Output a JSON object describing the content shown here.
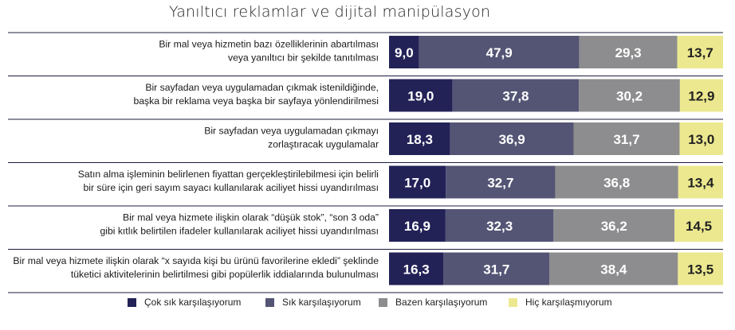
{
  "chart_data": {
    "type": "bar",
    "orientation": "horizontal",
    "stacked": true,
    "title": "Yanıltıcı reklamlar ve dijital manipülasyon",
    "categories": [
      [
        "Bir mal veya hizmetin bazı özelliklerinin abartılması",
        "veya yanıltıcı bir şekilde tanıtılması"
      ],
      [
        "Bir sayfadan veya uygulamadan çıkmak istenildiğinde,",
        "başka bir reklama veya başka bir sayfaya yönlendirilmesi"
      ],
      [
        "Bir sayfadan veya uygulamadan çıkmayı",
        "zorlaştıracak uygulamalar"
      ],
      [
        "Satın alma işleminin belirlenen fiyattan gerçekleştirilebilmesi için belirli",
        "bir süre için geri sayım sayacı kullanılarak aciliyet hissi uyandırılması"
      ],
      [
        "Bir mal veya hizmete ilişkin olarak “düşük stok”, “son 3 oda”",
        "gibi kıtlık belirtilen ifadeler kullanılarak aciliyet hissi uyandırılması"
      ],
      [
        "Bir mal veya hizmete ilişkin olarak “x sayıda kişi bu ürünü favorilerine ekledi” şeklinde",
        "tüketici aktivitelerinin belirtilmesi gibi popülerlik iddialarında bulunulması"
      ]
    ],
    "series": [
      {
        "name": "Çok sık karşılaşıyorum",
        "color": "#232257",
        "label_color": "#ffffff",
        "values": [
          "9,0",
          "19,0",
          "18,3",
          "17,0",
          "16,9",
          "16,3"
        ]
      },
      {
        "name": "Sık karşılaşıyorum",
        "color": "#545575",
        "label_color": "#ffffff",
        "values": [
          "47,9",
          "37,8",
          "36,9",
          "32,7",
          "32,3",
          "31,7"
        ]
      },
      {
        "name": "Bazen karşılaşıyorum",
        "color": "#8d8d8f",
        "label_color": "#ffffff",
        "values": [
          "29,3",
          "30,2",
          "31,7",
          "36,8",
          "36,2",
          "38,4"
        ]
      },
      {
        "name": "Hiç karşılaşmıyorum",
        "color": "#ece88f",
        "label_color": "#222222",
        "values": [
          "13,7",
          "12,9",
          "13,0",
          "13,4",
          "14,5",
          "13,5"
        ]
      }
    ],
    "unit": "%",
    "xlim": [
      0,
      100
    ],
    "legend_position": "bottom",
    "separator_color": "#1b1b3f"
  }
}
